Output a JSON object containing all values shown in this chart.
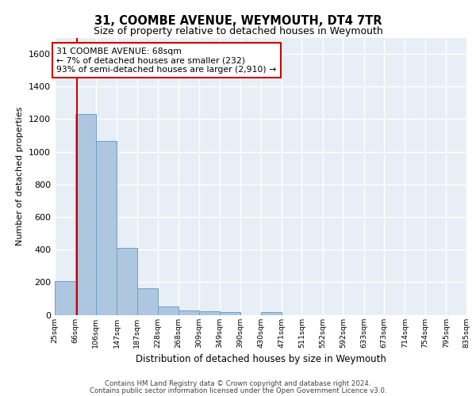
{
  "title1": "31, COOMBE AVENUE, WEYMOUTH, DT4 7TR",
  "title2": "Size of property relative to detached houses in Weymouth",
  "xlabel": "Distribution of detached houses by size in Weymouth",
  "ylabel": "Number of detached properties",
  "bins": [
    "25sqm",
    "66sqm",
    "106sqm",
    "147sqm",
    "187sqm",
    "228sqm",
    "268sqm",
    "309sqm",
    "349sqm",
    "390sqm",
    "430sqm",
    "471sqm",
    "511sqm",
    "552sqm",
    "592sqm",
    "633sqm",
    "673sqm",
    "714sqm",
    "754sqm",
    "795sqm",
    "835sqm"
  ],
  "bin_edges": [
    25,
    66,
    106,
    147,
    187,
    228,
    268,
    309,
    349,
    390,
    430,
    471,
    511,
    552,
    592,
    633,
    673,
    714,
    754,
    795,
    835
  ],
  "bar_heights": [
    205,
    1230,
    1065,
    410,
    165,
    50,
    28,
    20,
    15,
    0,
    15,
    0,
    0,
    0,
    0,
    0,
    0,
    0,
    0,
    0
  ],
  "bar_color": "#aec6df",
  "bar_edge_color": "#6ca0c8",
  "background_color": "#e8eef5",
  "grid_color": "#ffffff",
  "vline_x": 68,
  "vline_color": "#cc0000",
  "annotation_text": "31 COOMBE AVENUE: 68sqm\n← 7% of detached houses are smaller (232)\n93% of semi-detached houses are larger (2,910) →",
  "annotation_box_color": "#ffffff",
  "annotation_border_color": "#cc0000",
  "ylim": [
    0,
    1700
  ],
  "yticks": [
    0,
    200,
    400,
    600,
    800,
    1000,
    1200,
    1400,
    1600
  ],
  "footer1": "Contains HM Land Registry data © Crown copyright and database right 2024.",
  "footer2": "Contains public sector information licensed under the Open Government Licence v3.0."
}
